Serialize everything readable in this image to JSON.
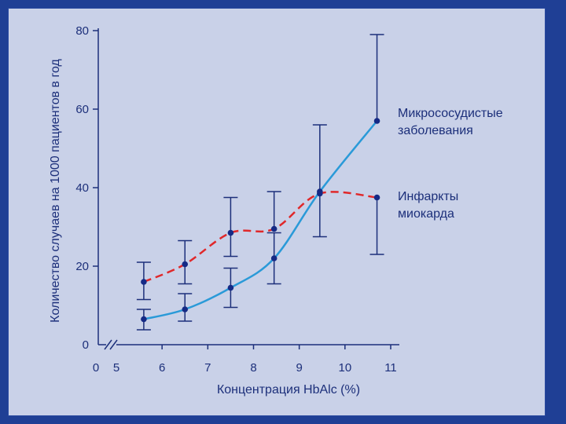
{
  "chart_data": {
    "type": "line",
    "xlabel": "Концентрация HbAlc (%)",
    "ylabel": "Количество случаев на 1000 пациентов в год",
    "xlim": [
      5,
      11
    ],
    "ylim": [
      0,
      80
    ],
    "x_ticks": [
      "0",
      "5",
      "6",
      "7",
      "8",
      "9",
      "10",
      "11"
    ],
    "y_ticks": [
      "0",
      "20",
      "40",
      "60",
      "80"
    ],
    "axis_break": true,
    "grid": false,
    "series": [
      {
        "name": "Микрососудистые заболевания",
        "label_lines": [
          "Микрососудистые",
          "заболевания"
        ],
        "color": "#2a9ad8",
        "line_style": "solid",
        "x": [
          5.6,
          6.5,
          7.5,
          8.45,
          9.45,
          10.7
        ],
        "y": [
          6.5,
          9,
          14.5,
          22,
          39,
          57
        ],
        "err_low": [
          3.8,
          6,
          9.5,
          15.5,
          27.5,
          null
        ],
        "err_high": [
          9,
          13,
          19.5,
          28.5,
          56,
          79
        ]
      },
      {
        "name": "Инфаркты миокарда",
        "label_lines": [
          "Инфаркты",
          "миокарда"
        ],
        "color": "#e0282a",
        "line_style": "dashed",
        "x": [
          5.6,
          6.5,
          7.5,
          8.45,
          9.45,
          10.7
        ],
        "y": [
          16,
          20.5,
          28.5,
          29.5,
          38.5,
          37.5
        ],
        "err_low": [
          11.5,
          15.5,
          22.5,
          null,
          null,
          23
        ],
        "err_high": [
          21,
          26.5,
          37.5,
          39,
          null,
          null
        ]
      }
    ]
  }
}
